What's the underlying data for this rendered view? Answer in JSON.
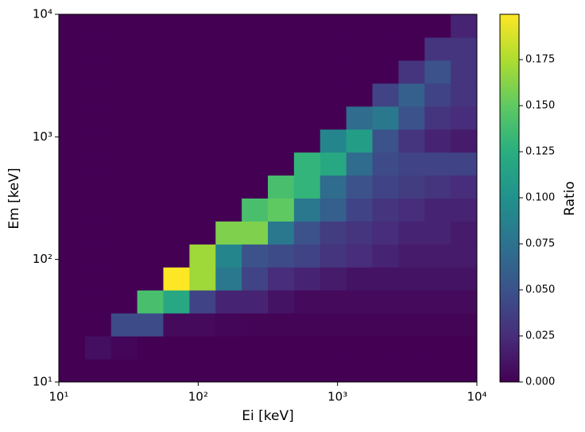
{
  "chart_data": {
    "type": "heatmap",
    "x_label": "Ei [keV]",
    "y_label": "Em [keV]",
    "colorbar_label": "Ratio",
    "colormap": "viridis",
    "xscale": "log",
    "yscale": "log",
    "xlim": [
      10,
      10000
    ],
    "ylim": [
      10,
      10000
    ],
    "xticks": [
      {
        "value": 10,
        "label": "10¹"
      },
      {
        "value": 100,
        "label": "10²"
      },
      {
        "value": 1000,
        "label": "10³"
      },
      {
        "value": 10000,
        "label": "10⁴"
      }
    ],
    "yticks": [
      {
        "value": 10,
        "label": "10¹"
      },
      {
        "value": 100,
        "label": "10²"
      },
      {
        "value": 1000,
        "label": "10³"
      },
      {
        "value": 10000,
        "label": "10⁴"
      }
    ],
    "clim": [
      0,
      0.1996
    ],
    "cticks": [
      {
        "value": 0,
        "label": "0.000"
      },
      0.025,
      {
        "value": 0.05,
        "label": "0.050"
      },
      0.075,
      {
        "value": 0.1,
        "label": "0.100"
      },
      0.125,
      {
        "value": 0.15,
        "label": "0.150"
      },
      0.175
    ],
    "values": [
      [
        0,
        0,
        0,
        0,
        0,
        0,
        0,
        0,
        0,
        0,
        0,
        0,
        0,
        0,
        0,
        0
      ],
      [
        0,
        0.008,
        0.003,
        0,
        0,
        0,
        0,
        0,
        0,
        0,
        0,
        0,
        0,
        0,
        0,
        0
      ],
      [
        0,
        0,
        0.045,
        0.045,
        0.005,
        0.005,
        0.003,
        0.002,
        0.002,
        0.002,
        0.002,
        0.002,
        0.002,
        0.002,
        0.002,
        0.002
      ],
      [
        0,
        0,
        0,
        0.14,
        0.12,
        0.04,
        0.02,
        0.02,
        0.01,
        0.005,
        0.005,
        0.005,
        0.005,
        0.005,
        0.005,
        0.005
      ],
      [
        0,
        0,
        0,
        0,
        0.1996,
        0.17,
        0.08,
        0.04,
        0.025,
        0.02,
        0.015,
        0.01,
        0.01,
        0.01,
        0.01,
        0.01
      ],
      [
        0,
        0,
        0,
        0,
        0,
        0.17,
        0.09,
        0.05,
        0.045,
        0.04,
        0.03,
        0.025,
        0.02,
        0.015,
        0.015,
        0.015
      ],
      [
        0,
        0,
        0,
        0,
        0,
        0,
        0.16,
        0.16,
        0.08,
        0.05,
        0.035,
        0.03,
        0.025,
        0.02,
        0.02,
        0.015
      ],
      [
        0,
        0,
        0,
        0,
        0,
        0,
        0,
        0.14,
        0.15,
        0.08,
        0.06,
        0.04,
        0.03,
        0.025,
        0.02,
        0.02
      ],
      [
        0,
        0,
        0,
        0,
        0,
        0,
        0,
        0,
        0.14,
        0.13,
        0.07,
        0.05,
        0.04,
        0.035,
        0.03,
        0.025
      ],
      [
        0,
        0,
        0,
        0,
        0,
        0,
        0,
        0,
        0,
        0.13,
        0.12,
        0.07,
        0.045,
        0.04,
        0.04,
        0.04
      ],
      [
        0,
        0,
        0,
        0,
        0,
        0,
        0,
        0,
        0,
        0,
        0.09,
        0.11,
        0.05,
        0.03,
        0.02,
        0.015
      ],
      [
        0,
        0,
        0,
        0,
        0,
        0,
        0,
        0,
        0,
        0,
        0,
        0.07,
        0.08,
        0.05,
        0.03,
        0.025
      ],
      [
        0,
        0,
        0,
        0,
        0,
        0,
        0,
        0,
        0,
        0,
        0,
        0,
        0.04,
        0.06,
        0.04,
        0.03
      ],
      [
        0,
        0,
        0,
        0,
        0,
        0,
        0,
        0,
        0,
        0,
        0,
        0,
        0,
        0.03,
        0.05,
        0.03
      ],
      [
        0,
        0,
        0,
        0,
        0,
        0,
        0,
        0,
        0,
        0,
        0,
        0,
        0,
        0,
        0.03,
        0.03
      ],
      [
        0,
        0,
        0,
        0,
        0,
        0,
        0,
        0,
        0,
        0,
        0,
        0,
        0,
        0,
        0,
        0.02
      ]
    ]
  }
}
